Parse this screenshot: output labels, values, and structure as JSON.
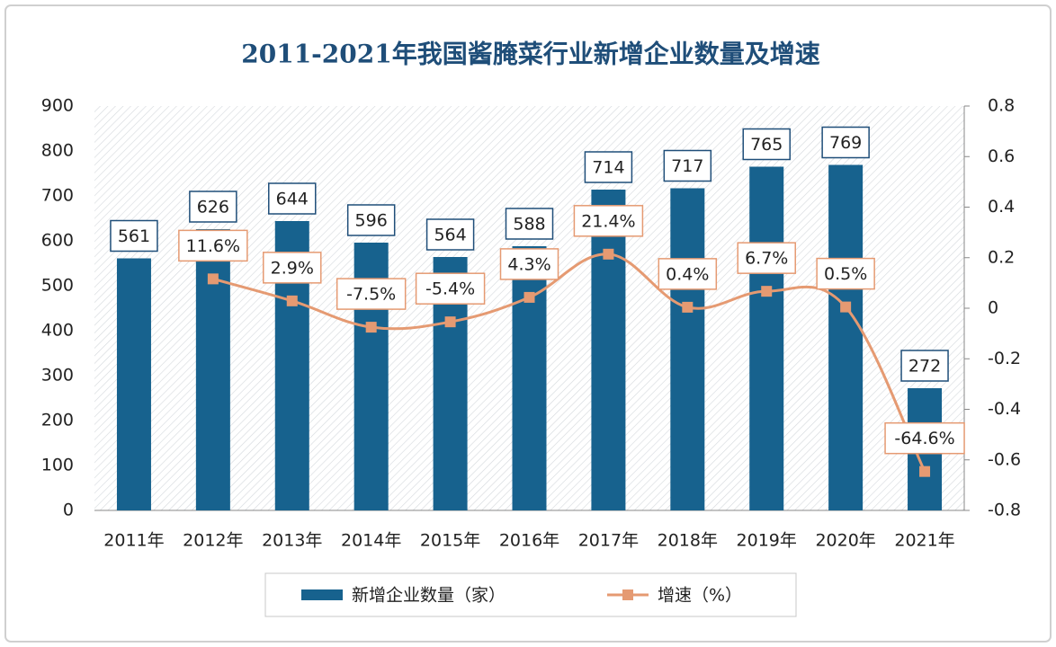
{
  "chart_data": {
    "type": "combo",
    "title": "2011-2021年我国酱腌菜行业新增企业数量及增速",
    "categories": [
      "2011年",
      "2012年",
      "2013年",
      "2014年",
      "2015年",
      "2016年",
      "2017年",
      "2018年",
      "2019年",
      "2020年",
      "2021年"
    ],
    "series": [
      {
        "name": "新增企业数量（家）",
        "type": "bar",
        "color": "#17628e",
        "values": [
          561,
          626,
          644,
          596,
          564,
          588,
          714,
          717,
          765,
          769,
          272
        ]
      },
      {
        "name": "增速（%）",
        "type": "line",
        "axis": "y2",
        "color": "#e59a72",
        "values": [
          null,
          0.116,
          0.029,
          -0.075,
          -0.054,
          0.043,
          0.214,
          0.004,
          0.067,
          0.005,
          -0.646
        ],
        "value_labels": [
          null,
          "11.6%",
          "2.9%",
          "-7.5%",
          "-5.4%",
          "4.3%",
          "21.4%",
          "0.4%",
          "6.7%",
          "0.5%",
          "-64.6%"
        ]
      }
    ],
    "ylim": [
      0,
      900
    ],
    "yticks": [
      0,
      100,
      200,
      300,
      400,
      500,
      600,
      700,
      800,
      900
    ],
    "y2lim": [
      -0.8,
      0.8
    ],
    "y2ticks": [
      -0.8,
      -0.6,
      -0.4,
      -0.2,
      0,
      0.2,
      0.4,
      0.6,
      0.8
    ],
    "legend": "bottom"
  }
}
